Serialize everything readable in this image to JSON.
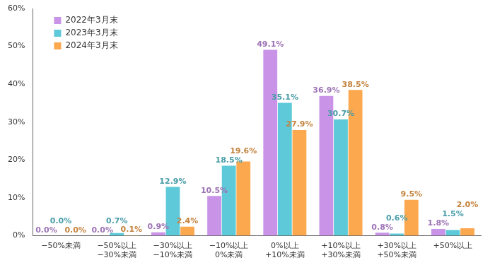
{
  "chart_data": {
    "type": "bar",
    "categories": [
      "−50%未満",
      "−50%以上\n−30%未満",
      "−30%以上\n−10%未満",
      "−10%以上\n0%未満",
      "0%以上\n+10%未満",
      "+10%以上\n+30%未満",
      "+30%以上\n+50%未満",
      "+50%以上"
    ],
    "series": [
      {
        "name": "2022年3月末",
        "color": "#c994e8",
        "values": [
          0.0,
          0.0,
          0.9,
          10.5,
          49.1,
          36.9,
          0.8,
          1.8
        ],
        "value_labels": [
          "0.0%",
          "0.0%",
          "0.9%",
          "10.5%",
          "49.1%",
          "36.9%",
          "0.8%",
          "1.8%"
        ]
      },
      {
        "name": "2023年3月末",
        "color": "#5ec9d8",
        "values": [
          0.0,
          0.7,
          12.9,
          18.5,
          35.1,
          30.7,
          0.6,
          1.5
        ],
        "value_labels": [
          "0.0%",
          "0.7%",
          "12.9%",
          "18.5%",
          "35.1%",
          "30.7%",
          "0.6%",
          "1.5%"
        ]
      },
      {
        "name": "2024年3月末",
        "color": "#fba84f",
        "values": [
          0.0,
          0.1,
          2.4,
          19.6,
          27.9,
          38.5,
          9.5,
          2.0
        ],
        "value_labels": [
          "0.0%",
          "0.1%",
          "2.4%",
          "19.6%",
          "27.9%",
          "38.5%",
          "9.5%",
          "2.0%"
        ]
      }
    ],
    "ylim": [
      0,
      60
    ],
    "yticks": [
      {
        "value": 0,
        "label": "0%"
      },
      {
        "value": 10,
        "label": "10%"
      },
      {
        "value": 20,
        "label": "20%"
      },
      {
        "value": 30,
        "label": "30%"
      },
      {
        "value": 40,
        "label": "40%"
      },
      {
        "value": 50,
        "label": "50%"
      },
      {
        "value": 60,
        "label": "60%"
      }
    ],
    "grid": false,
    "legend": "upper left",
    "data_labels": true
  }
}
